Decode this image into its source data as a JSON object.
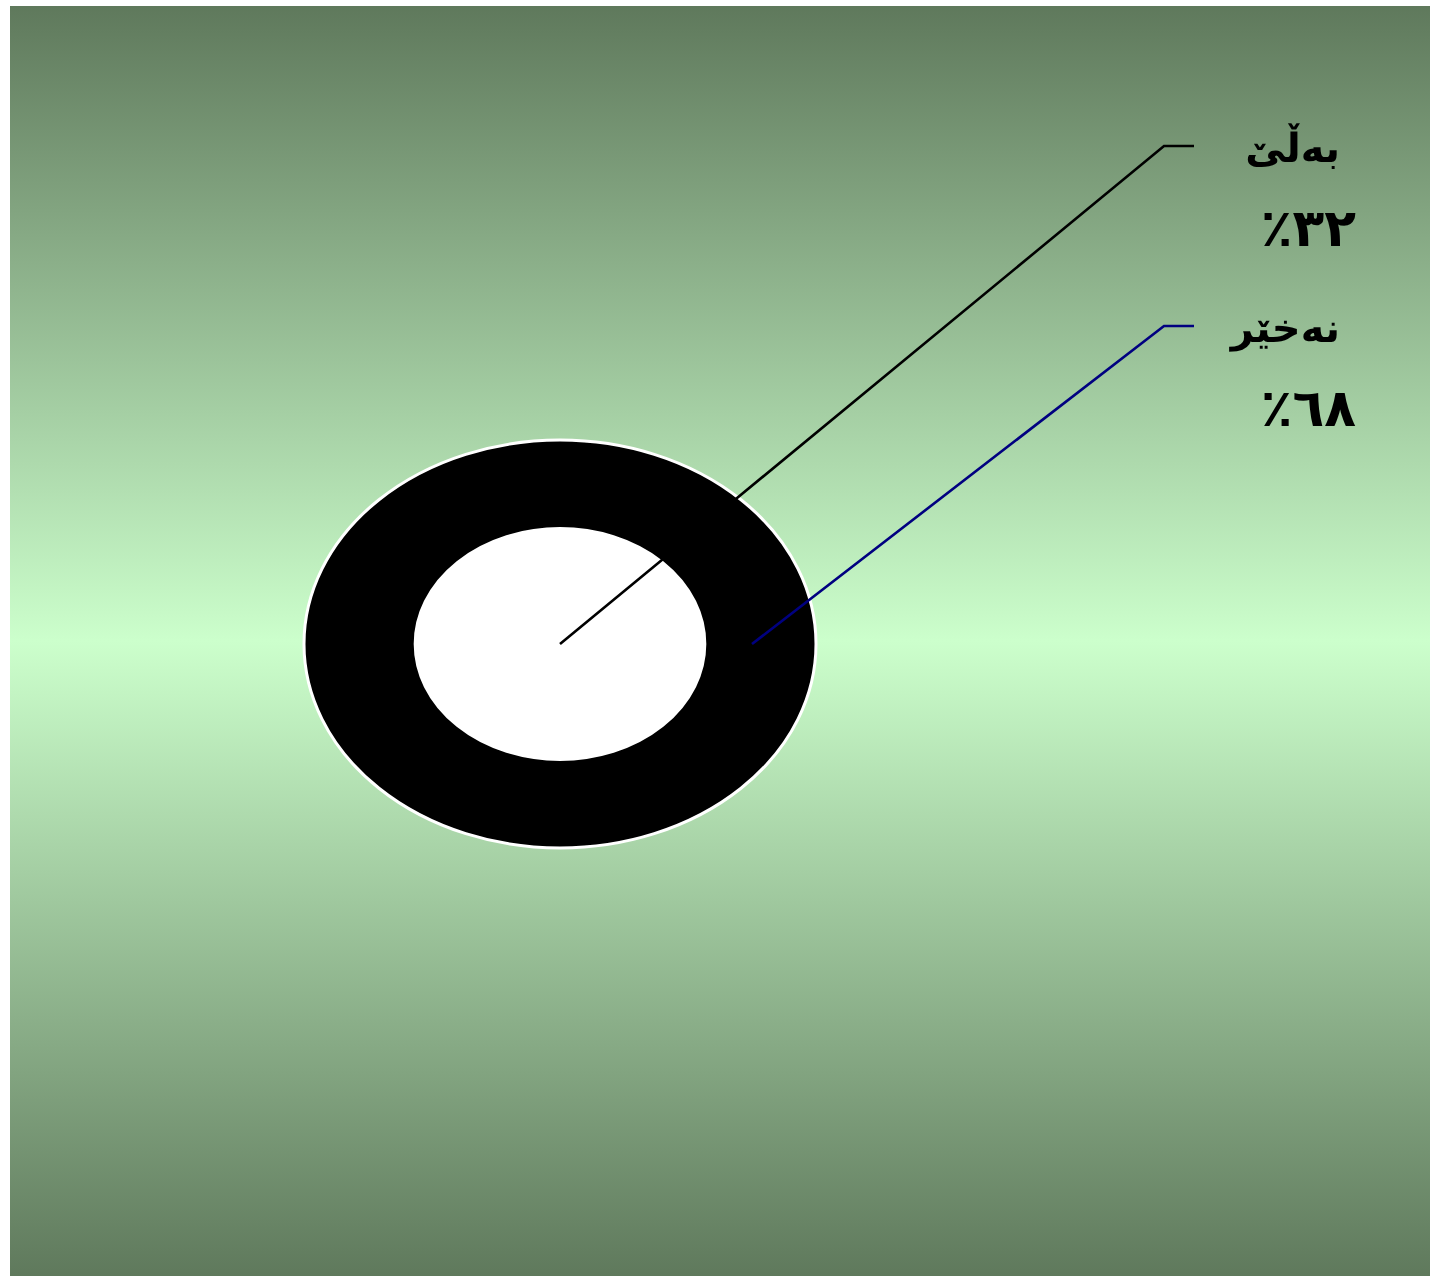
{
  "chart_data": {
    "type": "other",
    "categories": [
      "بەڵێ",
      "نەخێر"
    ],
    "values": [
      32,
      68
    ],
    "value_labels": [
      "٣٢٪",
      "٦٨٪"
    ],
    "colors": [
      "#ffffff",
      "#000000"
    ]
  }
}
